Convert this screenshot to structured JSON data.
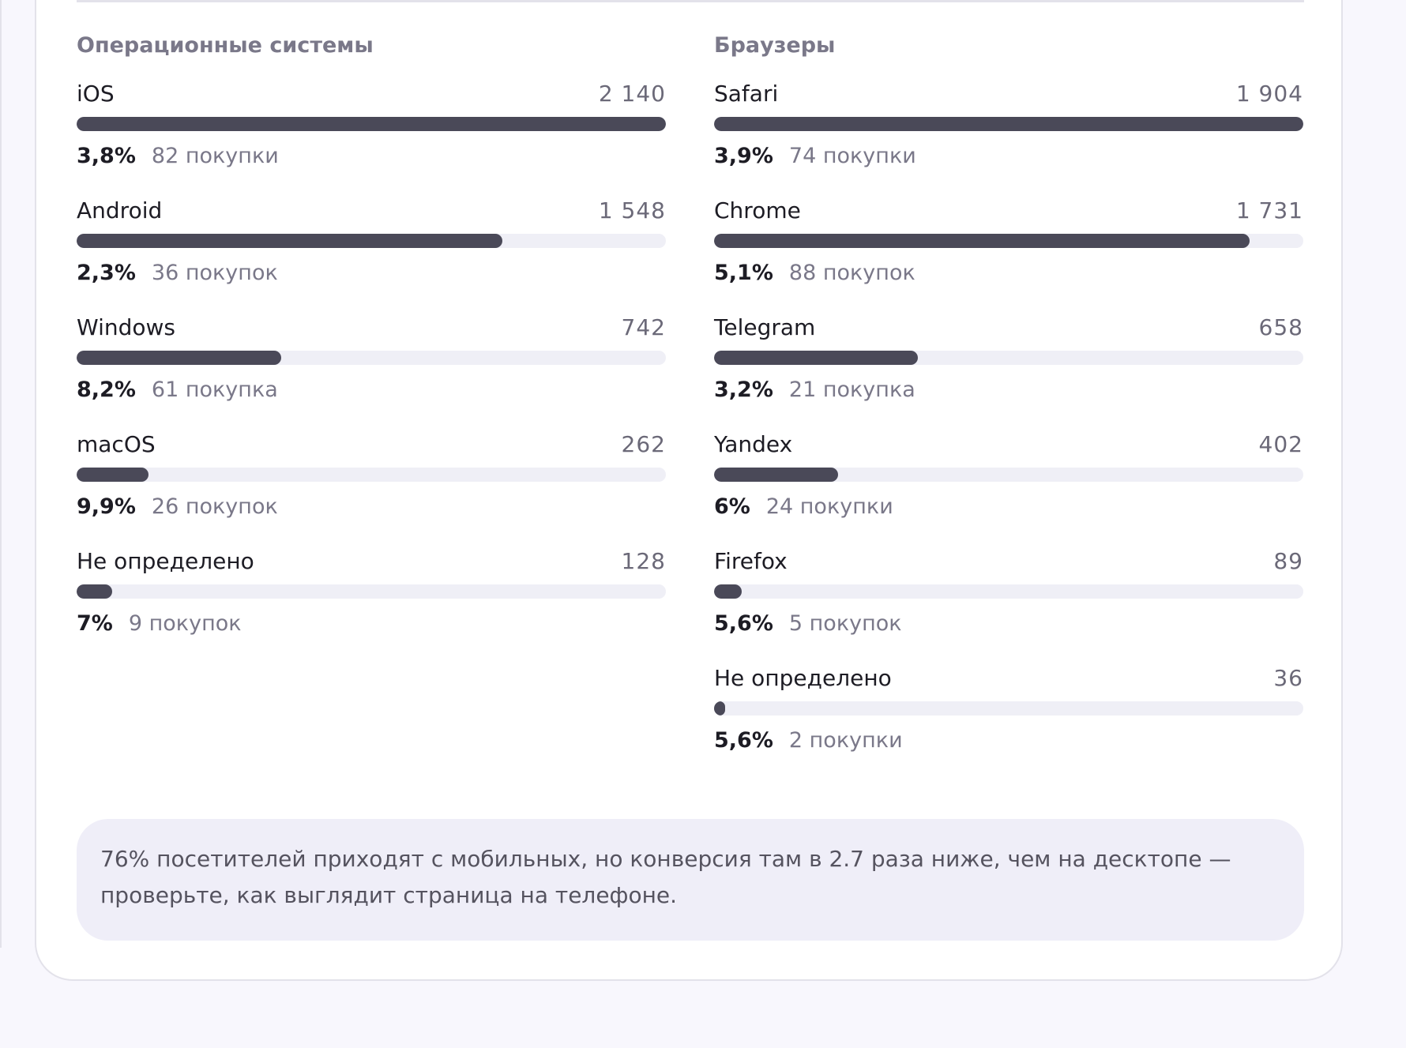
{
  "os": {
    "title": "Операционные системы",
    "items": [
      {
        "name": "iOS",
        "visits": "2 140",
        "rate": "3,8%",
        "purchases": "82 покупки",
        "share": 100
      },
      {
        "name": "Android",
        "visits": "1 548",
        "rate": "2,3%",
        "purchases": "36 покупок",
        "share": 72.3
      },
      {
        "name": "Windows",
        "visits": "742",
        "rate": "8,2%",
        "purchases": "61 покупка",
        "share": 34.7
      },
      {
        "name": "macOS",
        "visits": "262",
        "rate": "9,9%",
        "purchases": "26 покупок",
        "share": 12.2
      },
      {
        "name": "Не определено",
        "visits": "128",
        "rate": "7%",
        "purchases": "9 покупок",
        "share": 6
      }
    ]
  },
  "browsers": {
    "title": "Браузеры",
    "items": [
      {
        "name": "Safari",
        "visits": "1 904",
        "rate": "3,9%",
        "purchases": "74 покупки",
        "share": 100
      },
      {
        "name": "Chrome",
        "visits": "1 731",
        "rate": "5,1%",
        "purchases": "88 покупок",
        "share": 90.9
      },
      {
        "name": "Telegram",
        "visits": "658",
        "rate": "3,2%",
        "purchases": "21 покупка",
        "share": 34.6
      },
      {
        "name": "Yandex",
        "visits": "402",
        "rate": "6%",
        "purchases": "24 покупки",
        "share": 21.1
      },
      {
        "name": "Firefox",
        "visits": "89",
        "rate": "5,6%",
        "purchases": "5 покупок",
        "share": 4.7
      },
      {
        "name": "Не определено",
        "visits": "36",
        "rate": "5,6%",
        "purchases": "2 покупки",
        "share": 1.9
      }
    ]
  },
  "insight": {
    "text": "76% посетителей приходят с мобильных, но конверсия там в 2.7 раза ниже, чем на десктопе — проверьте, как выглядит страница на телефоне."
  },
  "colors": {
    "bar_fill": "#4a4958",
    "bar_track": "#efeff6",
    "insight_bg": "#efeef8"
  }
}
